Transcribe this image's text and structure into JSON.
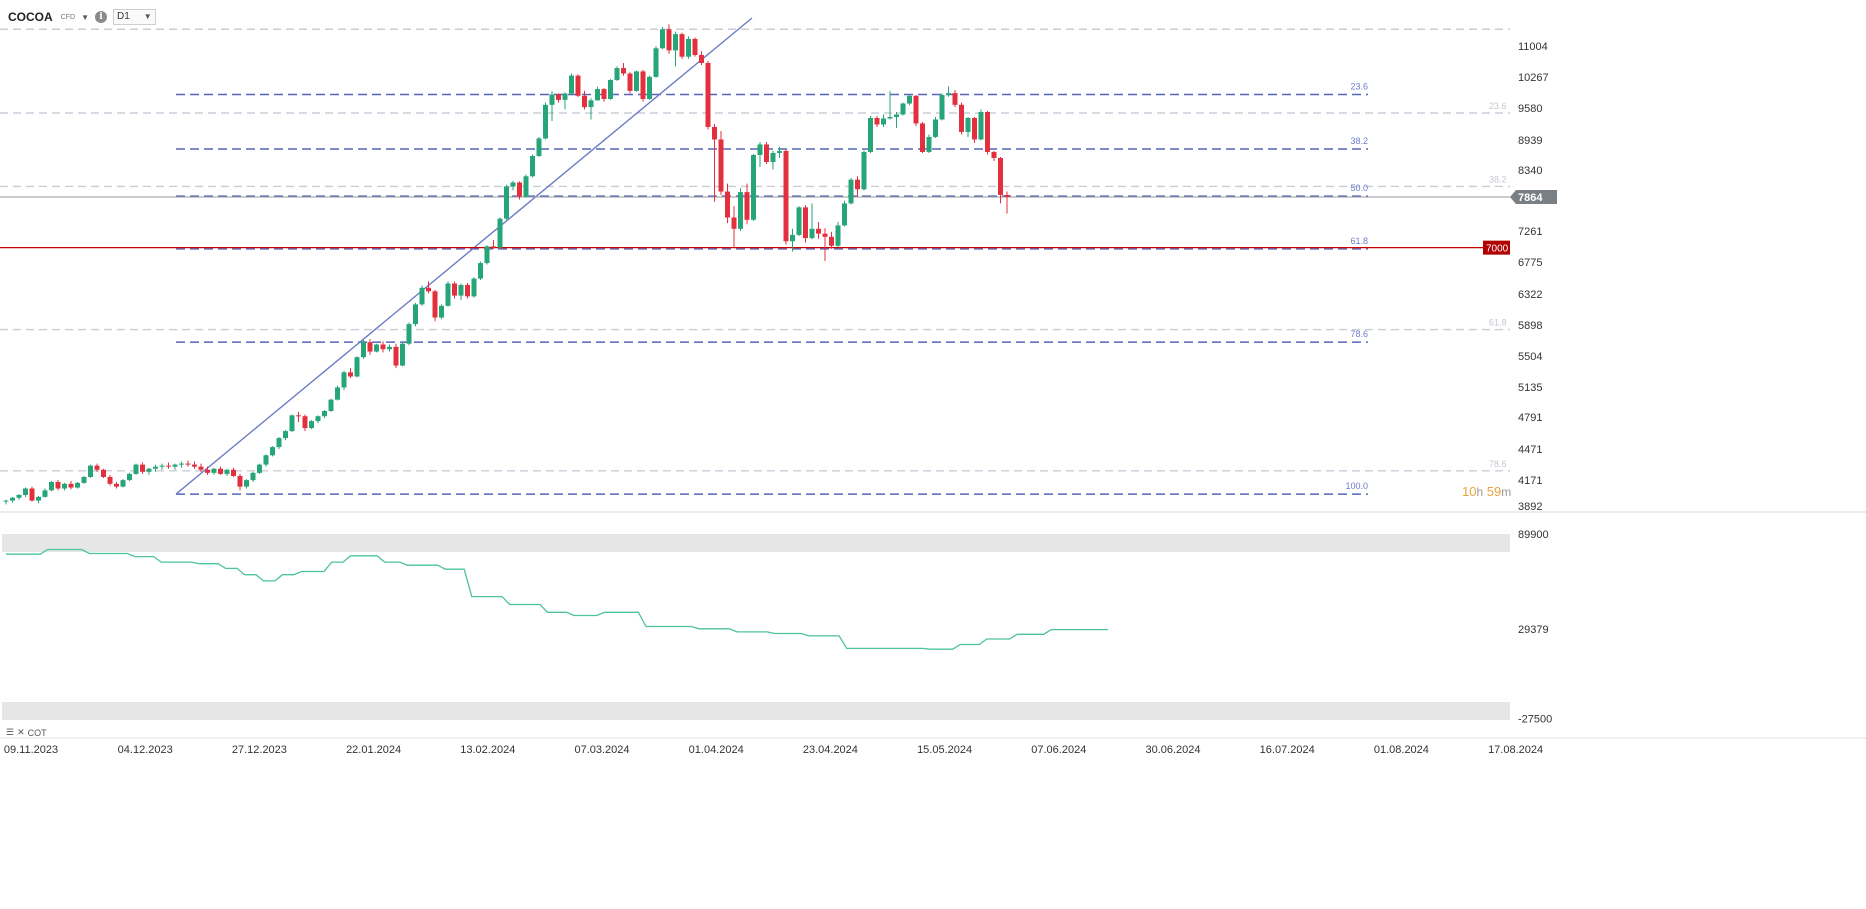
{
  "toolbar": {
    "symbol": "COCOA",
    "symbol_type": "CFD",
    "timeframe": "D1"
  },
  "indicator": {
    "label": "COT"
  },
  "countdown": {
    "hours": "10",
    "h_unit": "h",
    "minutes": "59",
    "m_unit": "m"
  },
  "colors": {
    "up": "#26a579",
    "down": "#e3303f",
    "fib_active": "#5566bb",
    "fib_faded": "#c9cdd8",
    "trendline": "#6d7cc6",
    "support_line": "#cc0000",
    "cot_line": "#4cc39a",
    "price_badge": "#7a7f86"
  },
  "chart_data": {
    "type": "candlestick",
    "y_ticks": [
      "11004",
      "10267",
      "9580",
      "8939",
      "8340",
      "7864",
      "7261",
      "6775",
      "6322",
      "5898",
      "5504",
      "5135",
      "4791",
      "4471",
      "4171",
      "3892"
    ],
    "x_ticks": [
      "09.11.2023",
      "04.12.2023",
      "27.12.2023",
      "22.01.2024",
      "13.02.2024",
      "07.03.2024",
      "01.04.2024",
      "23.04.2024",
      "15.05.2024",
      "07.06.2024",
      "30.06.2024",
      "16.07.2024",
      "01.08.2024",
      "17.08.2024"
    ],
    "current_price": "7864",
    "horizontal_line": {
      "price": 7000,
      "label": "7000"
    },
    "fib_active": [
      {
        "label": "23.6",
        "price": 9880
      },
      {
        "label": "38.2",
        "price": 8760
      },
      {
        "label": "50.0",
        "price": 7880
      },
      {
        "label": "61.8",
        "price": 6980
      },
      {
        "label": "78.6",
        "price": 5680
      },
      {
        "label": "100.0",
        "price": 4020
      }
    ],
    "fib_faded": [
      {
        "label": "",
        "price": 11350
      },
      {
        "label": "23.6",
        "price": 9480
      },
      {
        "label": "38.2",
        "price": 8050
      },
      {
        "label": "61.8",
        "price": 5840
      },
      {
        "label": "78.6",
        "price": 4260
      }
    ],
    "candles": [
      {
        "o": 3940,
        "h": 3960,
        "l": 3910,
        "c": 3950
      },
      {
        "o": 3950,
        "h": 3990,
        "l": 3930,
        "c": 3980
      },
      {
        "o": 3980,
        "h": 4020,
        "l": 3960,
        "c": 4010
      },
      {
        "o": 4010,
        "h": 4090,
        "l": 3990,
        "c": 4080
      },
      {
        "o": 4080,
        "h": 4100,
        "l": 3940,
        "c": 3950
      },
      {
        "o": 3950,
        "h": 4000,
        "l": 3920,
        "c": 3990
      },
      {
        "o": 3990,
        "h": 4080,
        "l": 3980,
        "c": 4060
      },
      {
        "o": 4060,
        "h": 4160,
        "l": 4050,
        "c": 4150
      },
      {
        "o": 4150,
        "h": 4170,
        "l": 4060,
        "c": 4080
      },
      {
        "o": 4080,
        "h": 4140,
        "l": 4060,
        "c": 4130
      },
      {
        "o": 4130,
        "h": 4160,
        "l": 4070,
        "c": 4090
      },
      {
        "o": 4090,
        "h": 4150,
        "l": 4080,
        "c": 4140
      },
      {
        "o": 4140,
        "h": 4210,
        "l": 4130,
        "c": 4200
      },
      {
        "o": 4200,
        "h": 4320,
        "l": 4190,
        "c": 4310
      },
      {
        "o": 4310,
        "h": 4330,
        "l": 4250,
        "c": 4270
      },
      {
        "o": 4270,
        "h": 4280,
        "l": 4190,
        "c": 4200
      },
      {
        "o": 4200,
        "h": 4220,
        "l": 4110,
        "c": 4130
      },
      {
        "o": 4130,
        "h": 4150,
        "l": 4080,
        "c": 4100
      },
      {
        "o": 4100,
        "h": 4180,
        "l": 4090,
        "c": 4170
      },
      {
        "o": 4170,
        "h": 4240,
        "l": 4160,
        "c": 4230
      },
      {
        "o": 4230,
        "h": 4330,
        "l": 4220,
        "c": 4320
      },
      {
        "o": 4320,
        "h": 4340,
        "l": 4230,
        "c": 4250
      },
      {
        "o": 4250,
        "h": 4290,
        "l": 4220,
        "c": 4280
      },
      {
        "o": 4280,
        "h": 4320,
        "l": 4250,
        "c": 4300
      },
      {
        "o": 4300,
        "h": 4330,
        "l": 4270,
        "c": 4310
      },
      {
        "o": 4310,
        "h": 4340,
        "l": 4280,
        "c": 4300
      },
      {
        "o": 4300,
        "h": 4330,
        "l": 4270,
        "c": 4320
      },
      {
        "o": 4320,
        "h": 4350,
        "l": 4290,
        "c": 4330
      },
      {
        "o": 4330,
        "h": 4360,
        "l": 4300,
        "c": 4320
      },
      {
        "o": 4320,
        "h": 4350,
        "l": 4280,
        "c": 4300
      },
      {
        "o": 4300,
        "h": 4330,
        "l": 4250,
        "c": 4270
      },
      {
        "o": 4270,
        "h": 4300,
        "l": 4220,
        "c": 4240
      },
      {
        "o": 4240,
        "h": 4290,
        "l": 4220,
        "c": 4280
      },
      {
        "o": 4280,
        "h": 4300,
        "l": 4220,
        "c": 4230
      },
      {
        "o": 4230,
        "h": 4280,
        "l": 4210,
        "c": 4270
      },
      {
        "o": 4270,
        "h": 4290,
        "l": 4200,
        "c": 4210
      },
      {
        "o": 4210,
        "h": 4230,
        "l": 4060,
        "c": 4100
      },
      {
        "o": 4100,
        "h": 4180,
        "l": 4080,
        "c": 4170
      },
      {
        "o": 4170,
        "h": 4250,
        "l": 4150,
        "c": 4240
      },
      {
        "o": 4240,
        "h": 4330,
        "l": 4230,
        "c": 4320
      },
      {
        "o": 4320,
        "h": 4420,
        "l": 4300,
        "c": 4410
      },
      {
        "o": 4410,
        "h": 4500,
        "l": 4400,
        "c": 4490
      },
      {
        "o": 4490,
        "h": 4590,
        "l": 4470,
        "c": 4580
      },
      {
        "o": 4580,
        "h": 4660,
        "l": 4560,
        "c": 4650
      },
      {
        "o": 4650,
        "h": 4820,
        "l": 4640,
        "c": 4810
      },
      {
        "o": 4810,
        "h": 4850,
        "l": 4740,
        "c": 4800
      },
      {
        "o": 4800,
        "h": 4820,
        "l": 4650,
        "c": 4680
      },
      {
        "o": 4680,
        "h": 4760,
        "l": 4670,
        "c": 4750
      },
      {
        "o": 4750,
        "h": 4810,
        "l": 4730,
        "c": 4800
      },
      {
        "o": 4800,
        "h": 4870,
        "l": 4780,
        "c": 4860
      },
      {
        "o": 4860,
        "h": 5000,
        "l": 4850,
        "c": 4990
      },
      {
        "o": 4990,
        "h": 5150,
        "l": 4980,
        "c": 5130
      },
      {
        "o": 5130,
        "h": 5330,
        "l": 5100,
        "c": 5310
      },
      {
        "o": 5310,
        "h": 5360,
        "l": 5240,
        "c": 5260
      },
      {
        "o": 5260,
        "h": 5500,
        "l": 5250,
        "c": 5490
      },
      {
        "o": 5490,
        "h": 5710,
        "l": 5470,
        "c": 5680
      },
      {
        "o": 5680,
        "h": 5720,
        "l": 5520,
        "c": 5560
      },
      {
        "o": 5560,
        "h": 5660,
        "l": 5550,
        "c": 5650
      },
      {
        "o": 5650,
        "h": 5690,
        "l": 5550,
        "c": 5590
      },
      {
        "o": 5590,
        "h": 5650,
        "l": 5560,
        "c": 5620
      },
      {
        "o": 5620,
        "h": 5660,
        "l": 5360,
        "c": 5390
      },
      {
        "o": 5390,
        "h": 5680,
        "l": 5380,
        "c": 5660
      },
      {
        "o": 5660,
        "h": 5930,
        "l": 5640,
        "c": 5910
      },
      {
        "o": 5910,
        "h": 6200,
        "l": 5880,
        "c": 6180
      },
      {
        "o": 6180,
        "h": 6440,
        "l": 6160,
        "c": 6410
      },
      {
        "o": 6410,
        "h": 6500,
        "l": 6330,
        "c": 6360
      },
      {
        "o": 6360,
        "h": 6380,
        "l": 5950,
        "c": 6000
      },
      {
        "o": 6000,
        "h": 6180,
        "l": 5980,
        "c": 6160
      },
      {
        "o": 6160,
        "h": 6500,
        "l": 6150,
        "c": 6470
      },
      {
        "o": 6470,
        "h": 6500,
        "l": 6260,
        "c": 6300
      },
      {
        "o": 6300,
        "h": 6470,
        "l": 6240,
        "c": 6450
      },
      {
        "o": 6450,
        "h": 6480,
        "l": 6260,
        "c": 6290
      },
      {
        "o": 6290,
        "h": 6560,
        "l": 6270,
        "c": 6540
      },
      {
        "o": 6540,
        "h": 6780,
        "l": 6520,
        "c": 6760
      },
      {
        "o": 6760,
        "h": 7040,
        "l": 6740,
        "c": 7020
      },
      {
        "o": 7020,
        "h": 7120,
        "l": 6980,
        "c": 7000
      },
      {
        "o": 7000,
        "h": 7500,
        "l": 6980,
        "c": 7480
      },
      {
        "o": 7480,
        "h": 8080,
        "l": 7460,
        "c": 8050
      },
      {
        "o": 8050,
        "h": 8150,
        "l": 7980,
        "c": 8120
      },
      {
        "o": 8120,
        "h": 8140,
        "l": 7820,
        "c": 7870
      },
      {
        "o": 7870,
        "h": 8260,
        "l": 7850,
        "c": 8230
      },
      {
        "o": 8230,
        "h": 8650,
        "l": 8210,
        "c": 8620
      },
      {
        "o": 8620,
        "h": 9000,
        "l": 8600,
        "c": 8970
      },
      {
        "o": 8970,
        "h": 9700,
        "l": 8950,
        "c": 9650
      },
      {
        "o": 9650,
        "h": 9950,
        "l": 9320,
        "c": 9880
      },
      {
        "o": 9880,
        "h": 9900,
        "l": 9700,
        "c": 9760
      },
      {
        "o": 9760,
        "h": 9930,
        "l": 9550,
        "c": 9900
      },
      {
        "o": 9900,
        "h": 10350,
        "l": 9860,
        "c": 10300
      },
      {
        "o": 10300,
        "h": 10330,
        "l": 9820,
        "c": 9850
      },
      {
        "o": 9850,
        "h": 9960,
        "l": 9550,
        "c": 9600
      },
      {
        "o": 9600,
        "h": 9800,
        "l": 9350,
        "c": 9750
      },
      {
        "o": 9750,
        "h": 10050,
        "l": 9740,
        "c": 10000
      },
      {
        "o": 10000,
        "h": 10020,
        "l": 9720,
        "c": 9780
      },
      {
        "o": 9780,
        "h": 10220,
        "l": 9760,
        "c": 10200
      },
      {
        "o": 10200,
        "h": 10520,
        "l": 10180,
        "c": 10480
      },
      {
        "o": 10480,
        "h": 10600,
        "l": 10300,
        "c": 10350
      },
      {
        "o": 10350,
        "h": 10380,
        "l": 9900,
        "c": 9960
      },
      {
        "o": 9960,
        "h": 10420,
        "l": 9940,
        "c": 10400
      },
      {
        "o": 10400,
        "h": 10440,
        "l": 9720,
        "c": 9780
      },
      {
        "o": 9780,
        "h": 10300,
        "l": 9760,
        "c": 10270
      },
      {
        "o": 10270,
        "h": 11000,
        "l": 10250,
        "c": 10950
      },
      {
        "o": 10950,
        "h": 11400,
        "l": 10930,
        "c": 11350
      },
      {
        "o": 11350,
        "h": 11450,
        "l": 10820,
        "c": 10900
      },
      {
        "o": 10900,
        "h": 11300,
        "l": 10520,
        "c": 11250
      },
      {
        "o": 11250,
        "h": 11280,
        "l": 10700,
        "c": 10750
      },
      {
        "o": 10750,
        "h": 11200,
        "l": 10700,
        "c": 11150
      },
      {
        "o": 11150,
        "h": 11180,
        "l": 10750,
        "c": 10790
      },
      {
        "o": 10790,
        "h": 10880,
        "l": 10550,
        "c": 10600
      },
      {
        "o": 10600,
        "h": 10650,
        "l": 9150,
        "c": 9200
      },
      {
        "o": 9200,
        "h": 9260,
        "l": 7780,
        "c": 8950
      },
      {
        "o": 8950,
        "h": 9120,
        "l": 7900,
        "c": 7960
      },
      {
        "o": 7960,
        "h": 8100,
        "l": 7400,
        "c": 7500
      },
      {
        "o": 7500,
        "h": 7700,
        "l": 7000,
        "c": 7300
      },
      {
        "o": 7300,
        "h": 8020,
        "l": 7260,
        "c": 7950
      },
      {
        "o": 7950,
        "h": 8100,
        "l": 7380,
        "c": 7460
      },
      {
        "o": 7460,
        "h": 8660,
        "l": 7440,
        "c": 8640
      },
      {
        "o": 8640,
        "h": 8900,
        "l": 8400,
        "c": 8850
      },
      {
        "o": 8850,
        "h": 8900,
        "l": 8460,
        "c": 8500
      },
      {
        "o": 8500,
        "h": 8720,
        "l": 8350,
        "c": 8680
      },
      {
        "o": 8680,
        "h": 8800,
        "l": 8580,
        "c": 8720
      },
      {
        "o": 8720,
        "h": 8750,
        "l": 7050,
        "c": 7100
      },
      {
        "o": 7100,
        "h": 7300,
        "l": 6940,
        "c": 7200
      },
      {
        "o": 7200,
        "h": 7700,
        "l": 7180,
        "c": 7680
      },
      {
        "o": 7680,
        "h": 7720,
        "l": 7080,
        "c": 7150
      },
      {
        "o": 7150,
        "h": 7750,
        "l": 7130,
        "c": 7300
      },
      {
        "o": 7300,
        "h": 7420,
        "l": 7140,
        "c": 7220
      },
      {
        "o": 7220,
        "h": 7310,
        "l": 6790,
        "c": 7170
      },
      {
        "o": 7170,
        "h": 7250,
        "l": 6980,
        "c": 7030
      },
      {
        "o": 7030,
        "h": 7420,
        "l": 7010,
        "c": 7360
      },
      {
        "o": 7360,
        "h": 7800,
        "l": 7340,
        "c": 7750
      },
      {
        "o": 7750,
        "h": 8200,
        "l": 7730,
        "c": 8170
      },
      {
        "o": 8170,
        "h": 8230,
        "l": 7870,
        "c": 8000
      },
      {
        "o": 8000,
        "h": 8730,
        "l": 7980,
        "c": 8700
      },
      {
        "o": 8700,
        "h": 9420,
        "l": 8680,
        "c": 9380
      },
      {
        "o": 9380,
        "h": 9420,
        "l": 9200,
        "c": 9250
      },
      {
        "o": 9250,
        "h": 9450,
        "l": 9200,
        "c": 9370
      },
      {
        "o": 9370,
        "h": 9950,
        "l": 9350,
        "c": 9400
      },
      {
        "o": 9400,
        "h": 9500,
        "l": 9180,
        "c": 9450
      },
      {
        "o": 9450,
        "h": 9700,
        "l": 9430,
        "c": 9680
      },
      {
        "o": 9680,
        "h": 9870,
        "l": 9640,
        "c": 9850
      },
      {
        "o": 9850,
        "h": 9870,
        "l": 9220,
        "c": 9270
      },
      {
        "o": 9270,
        "h": 9300,
        "l": 8680,
        "c": 8700
      },
      {
        "o": 8700,
        "h": 9050,
        "l": 8680,
        "c": 9000
      },
      {
        "o": 9000,
        "h": 9400,
        "l": 8980,
        "c": 9350
      },
      {
        "o": 9350,
        "h": 9900,
        "l": 9330,
        "c": 9870
      },
      {
        "o": 9870,
        "h": 10060,
        "l": 9830,
        "c": 9910
      },
      {
        "o": 9910,
        "h": 9980,
        "l": 9600,
        "c": 9650
      },
      {
        "o": 9650,
        "h": 9700,
        "l": 9050,
        "c": 9100
      },
      {
        "o": 9100,
        "h": 9400,
        "l": 9000,
        "c": 9380
      },
      {
        "o": 9380,
        "h": 9400,
        "l": 8880,
        "c": 8950
      },
      {
        "o": 8950,
        "h": 9550,
        "l": 8930,
        "c": 9500
      },
      {
        "o": 9500,
        "h": 9520,
        "l": 8650,
        "c": 8700
      },
      {
        "o": 8700,
        "h": 8720,
        "l": 8520,
        "c": 8580
      },
      {
        "o": 8580,
        "h": 8600,
        "l": 7750,
        "c": 7900
      },
      {
        "o": 7900,
        "h": 7960,
        "l": 7570,
        "c": 7864
      }
    ],
    "cot": {
      "y_ticks": [
        "89900",
        "29379",
        "-27500"
      ],
      "values": [
        [
          0,
          77000
        ],
        [
          18,
          77000
        ],
        [
          22,
          80000
        ],
        [
          40,
          80000
        ],
        [
          44,
          77500
        ],
        [
          64,
          77500
        ],
        [
          68,
          75500
        ],
        [
          78,
          75500
        ],
        [
          82,
          72000
        ],
        [
          98,
          72000
        ],
        [
          102,
          71000
        ],
        [
          112,
          71000
        ],
        [
          116,
          68000
        ],
        [
          122,
          68000
        ],
        [
          126,
          64000
        ],
        [
          132,
          64000
        ],
        [
          136,
          60000
        ],
        [
          142,
          60000
        ],
        [
          146,
          64000
        ],
        [
          152,
          64000
        ],
        [
          156,
          66000
        ],
        [
          168,
          66000
        ],
        [
          172,
          72000
        ],
        [
          178,
          72000
        ],
        [
          182,
          76000
        ],
        [
          196,
          76000
        ],
        [
          200,
          72000
        ],
        [
          208,
          72000
        ],
        [
          212,
          70000
        ],
        [
          228,
          70000
        ],
        [
          232,
          67500
        ],
        [
          242,
          67500
        ],
        [
          246,
          50000
        ],
        [
          262,
          50000
        ],
        [
          266,
          45000
        ],
        [
          282,
          45000
        ],
        [
          286,
          40000
        ],
        [
          296,
          40000
        ],
        [
          300,
          38000
        ],
        [
          312,
          38000
        ],
        [
          316,
          40000
        ],
        [
          334,
          40000
        ],
        [
          338,
          31000
        ],
        [
          362,
          31000
        ],
        [
          366,
          29500
        ],
        [
          382,
          29500
        ],
        [
          386,
          27500
        ],
        [
          402,
          27500
        ],
        [
          406,
          26500
        ],
        [
          420,
          26500
        ],
        [
          424,
          25000
        ],
        [
          440,
          25000
        ],
        [
          444,
          17000
        ],
        [
          484,
          17000
        ],
        [
          488,
          16500
        ],
        [
          500,
          16500
        ],
        [
          504,
          19500
        ],
        [
          514,
          19500
        ],
        [
          518,
          23000
        ],
        [
          530,
          23000
        ],
        [
          534,
          26000
        ],
        [
          548,
          26000
        ],
        [
          552,
          29000
        ],
        [
          582,
          29000
        ]
      ]
    }
  }
}
